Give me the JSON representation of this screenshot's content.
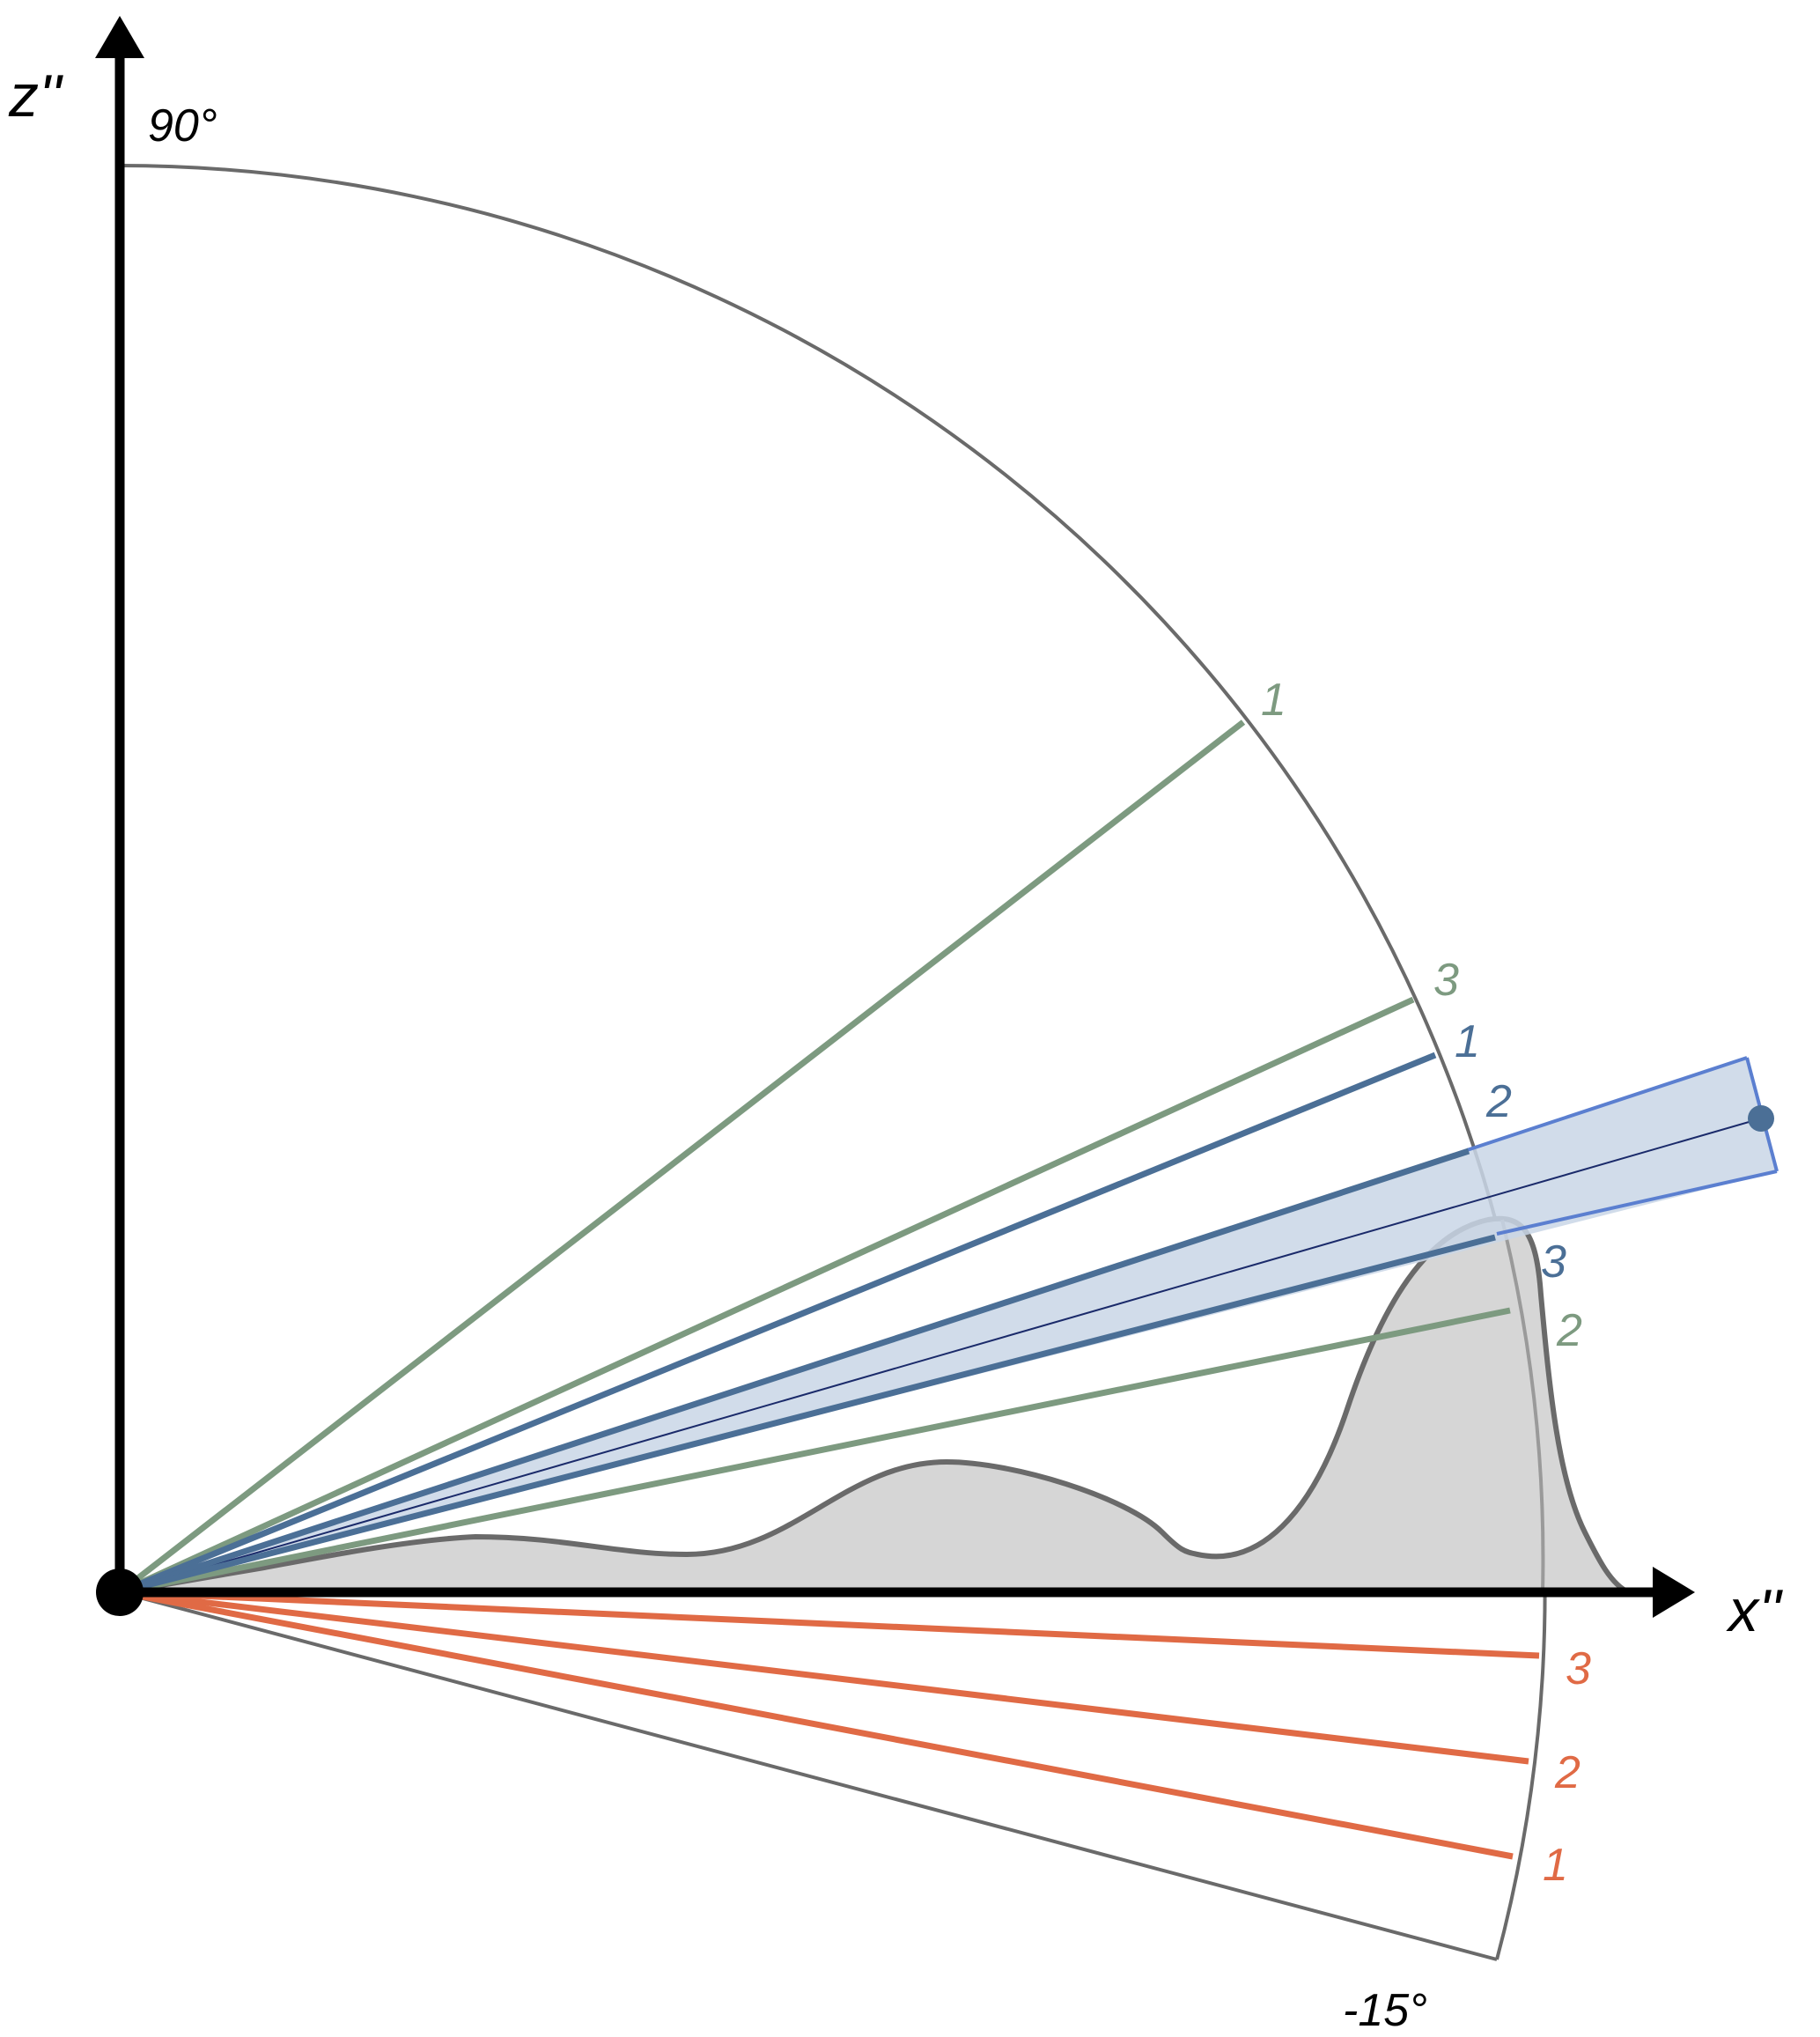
{
  "axes": {
    "x_label": "x''",
    "z_label": "z''",
    "top_angle_label": "90°",
    "bottom_angle_label": "-15°"
  },
  "colors": {
    "green_ray": "#7d9a80",
    "blue_ray": "#4b6f96",
    "orange_ray": "#e06a45",
    "arc": "#6a6a6a",
    "terrain_fill": "#d6d6d6",
    "terrain_edge": "#6a6a6a",
    "beam_fill": "#c9d6e6",
    "beam_edge": "#5b7fd0",
    "axis": "#000000"
  },
  "rays": {
    "green": [
      "1",
      "3",
      "2"
    ],
    "blue": [
      "1",
      "2",
      "3"
    ],
    "orange": [
      "3",
      "2",
      "1"
    ]
  }
}
